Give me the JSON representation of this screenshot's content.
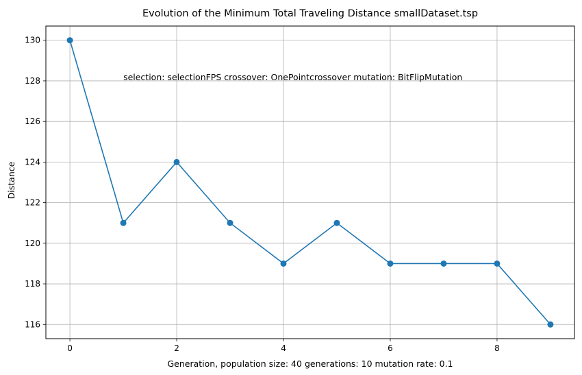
{
  "chart_data": {
    "type": "line",
    "title": "Evolution of the Minimum Total Traveling Distance smallDataset.tsp",
    "xlabel": "Generation,  population size: 40 generations: 10 mutation rate: 0.1",
    "ylabel": "Distance",
    "annotation": {
      "text": "selection: selectionFPS crossover: OnePointcrossover mutation: BitFlipMutation",
      "x": 1,
      "y": 128.2
    },
    "x": [
      0,
      1,
      2,
      3,
      4,
      5,
      6,
      7,
      8,
      9
    ],
    "series": [
      {
        "values": [
          130,
          121,
          124,
          121,
          119,
          121,
          119,
          119,
          119,
          116
        ]
      }
    ],
    "xlim": [
      -0.45,
      9.45
    ],
    "ylim": [
      115.3,
      130.7
    ],
    "xticks": [
      0,
      2,
      4,
      6,
      8
    ],
    "yticks": [
      116,
      118,
      120,
      122,
      124,
      126,
      128,
      130
    ],
    "grid": true,
    "marker": "circle",
    "colors": {
      "line": "#1f77b4",
      "grid": "#b0b0b0",
      "axes": "#000000"
    }
  }
}
